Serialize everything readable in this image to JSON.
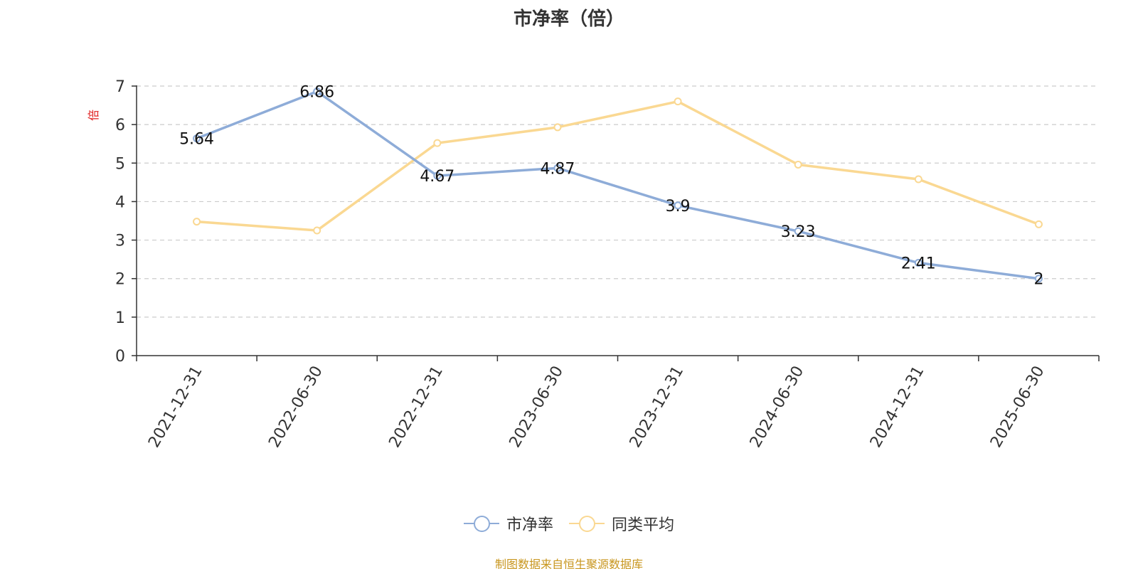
{
  "chart_data": {
    "type": "line",
    "title": "市净率（倍）",
    "ylabel": "倍",
    "xlabel": "",
    "categories": [
      "2021-12-31",
      "2022-06-30",
      "2022-12-31",
      "2023-06-30",
      "2023-12-31",
      "2024-06-30",
      "2024-12-31",
      "2025-06-30"
    ],
    "ylim": [
      0,
      7
    ],
    "yticks": [
      0,
      1,
      2,
      3,
      4,
      5,
      6,
      7
    ],
    "grid": true,
    "legend_position": "bottom",
    "series": [
      {
        "name": "市净率",
        "color": "#8eacd8",
        "values": [
          5.64,
          6.86,
          4.67,
          4.87,
          3.9,
          3.23,
          2.41,
          2.0
        ],
        "labels": [
          "5.64",
          "6.86",
          "4.67",
          "4.87",
          "3.9",
          "3.23",
          "2.41",
          "2"
        ]
      },
      {
        "name": "同类平均",
        "color": "#fad892",
        "values": [
          3.48,
          3.25,
          5.52,
          5.93,
          6.6,
          4.96,
          4.58,
          3.41
        ]
      }
    ]
  },
  "footer": {
    "source": "制图数据来自恒生聚源数据库"
  },
  "colors": {
    "ylabel": "#e02020",
    "source": "#c8961e"
  }
}
